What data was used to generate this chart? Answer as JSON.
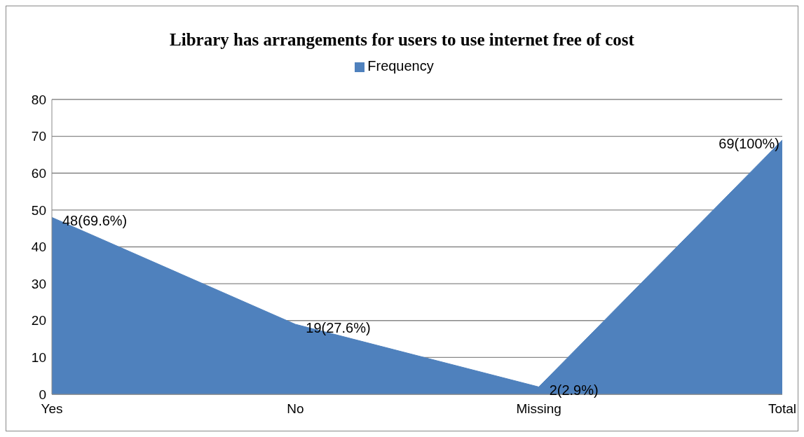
{
  "chart_data": {
    "type": "area",
    "title": "Library has arrangements for users to use internet free of cost",
    "categories": [
      "Yes",
      "No",
      "Missing",
      "Total"
    ],
    "series": [
      {
        "name": "Frequency",
        "color": "#4f81bd",
        "values": [
          48,
          19,
          2,
          69
        ],
        "value_labels": [
          "48(69.6%)",
          "19(27.6%)",
          "2(2.9%)",
          "69(100%)"
        ]
      }
    ],
    "ylim": [
      0,
      80
    ],
    "yticks": [
      0,
      10,
      20,
      30,
      40,
      50,
      60,
      70,
      80
    ],
    "grid": "y",
    "legend": "top"
  }
}
